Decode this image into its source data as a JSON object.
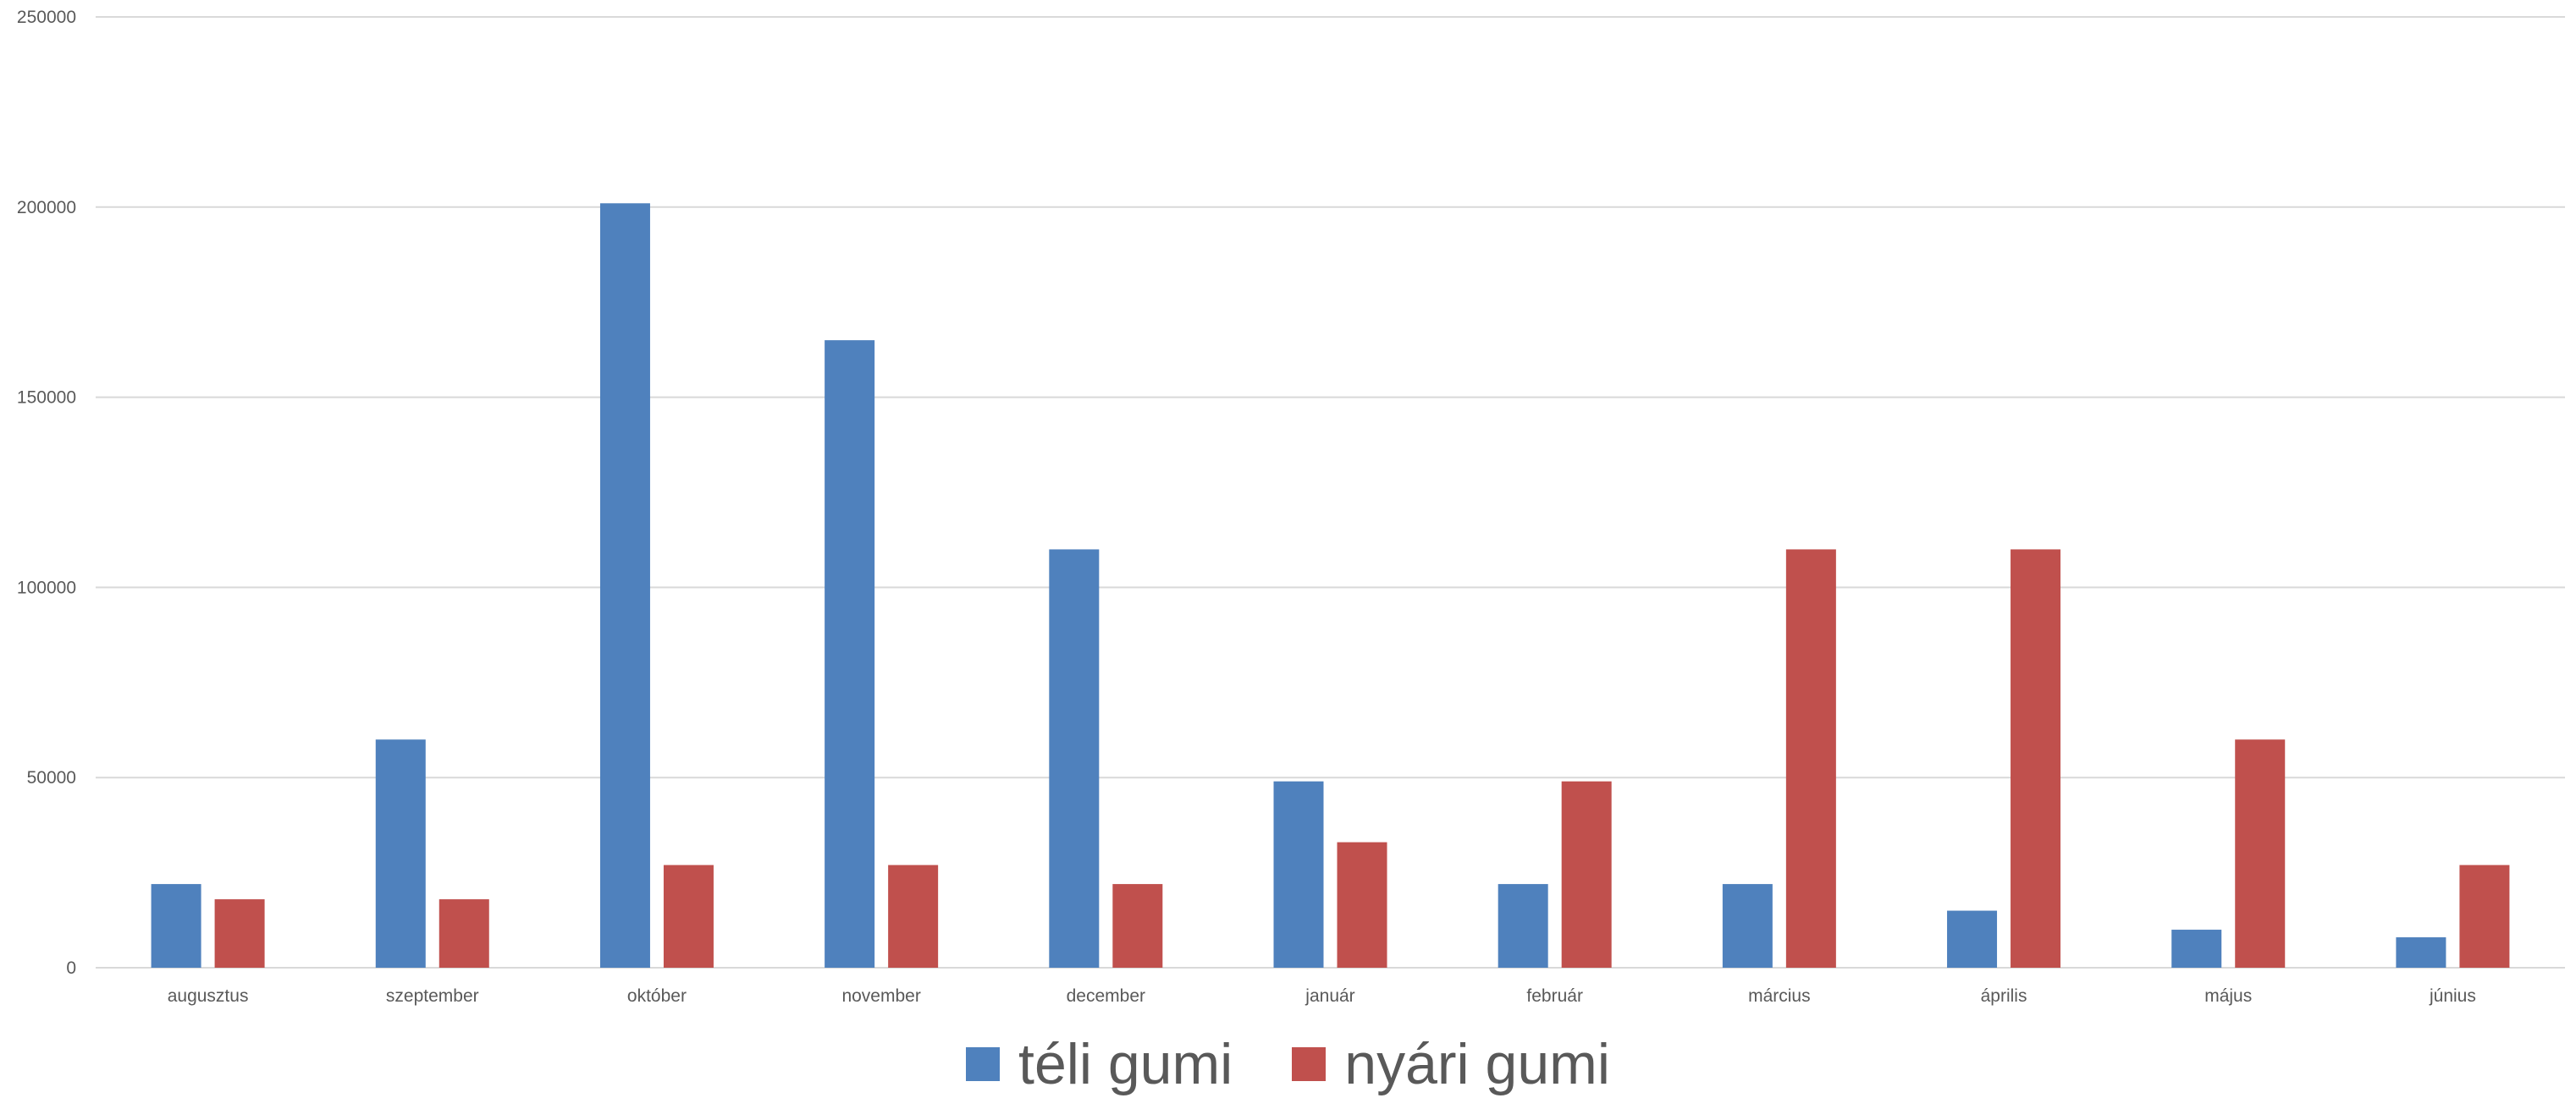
{
  "chart_data": {
    "type": "bar",
    "categories": [
      "augusztus",
      "szeptember",
      "október",
      "november",
      "december",
      "január",
      "február",
      "március",
      "április",
      "május",
      "június"
    ],
    "series": [
      {
        "name": "téli gumi",
        "color": "#4f81bd",
        "values": [
          22000,
          60000,
          201000,
          165000,
          110000,
          49000,
          22000,
          22000,
          15000,
          10000,
          8000
        ]
      },
      {
        "name": "nyári gumi",
        "color": "#c0504d",
        "values": [
          18000,
          18000,
          27000,
          27000,
          22000,
          33000,
          49000,
          110000,
          110000,
          60000,
          27000
        ]
      }
    ],
    "ylim": [
      0,
      250000
    ],
    "yticks": [
      "0",
      "50000",
      "100000",
      "150000",
      "200000",
      "250000"
    ],
    "grid": true,
    "legend": "bottom"
  }
}
